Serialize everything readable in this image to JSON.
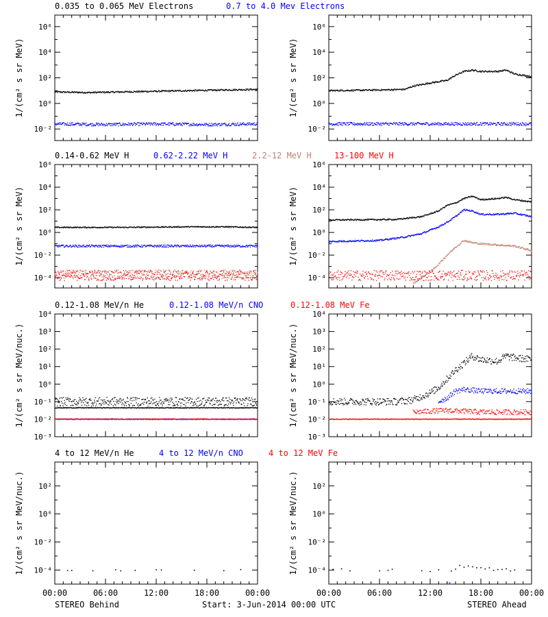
{
  "colors": {
    "black": "#000000",
    "blue": "#0000ff",
    "tan": "#c08070",
    "red": "#ff0000"
  },
  "footer": {
    "left": "STEREO Behind",
    "center": "Start:  3-Jun-2014 00:00 UTC",
    "right": "STEREO Ahead"
  },
  "x_axis": {
    "ticks": [
      "00:00",
      "06:00",
      "12:00",
      "18:00",
      "00:00"
    ],
    "range_hours": [
      0,
      24
    ]
  },
  "chart_data": [
    {
      "type": "scatter",
      "row": 0,
      "side": "behind",
      "ylabel": "1/(cm² s sr MeV)",
      "yscale": "log",
      "ylim_exp": [
        -2.9,
        6.9
      ],
      "ytick_exp": [
        -2,
        0,
        2,
        4,
        6
      ],
      "legend": [
        {
          "label": "0.035 to 0.065 MeV Electrons",
          "color": "black"
        },
        {
          "label": "0.7 to 4.0 Mev Electrons",
          "color": "blue"
        }
      ],
      "series": [
        {
          "color": "black",
          "points": [
            [
              0,
              0.9
            ],
            [
              4,
              0.85
            ],
            [
              8,
              0.9
            ],
            [
              12,
              0.95
            ],
            [
              16,
              1.0
            ],
            [
              20,
              1.05
            ],
            [
              24,
              1.1
            ]
          ],
          "jitter": 0.06
        },
        {
          "color": "blue",
          "points": [
            [
              0,
              -1.6
            ],
            [
              6,
              -1.65
            ],
            [
              12,
              -1.6
            ],
            [
              18,
              -1.65
            ],
            [
              24,
              -1.6
            ]
          ],
          "jitter": 0.12
        }
      ]
    },
    {
      "type": "scatter",
      "row": 0,
      "side": "ahead",
      "ylabel": "1/(cm² s sr MeV)",
      "yscale": "log",
      "ylim_exp": [
        -2.9,
        6.9
      ],
      "ytick_exp": [
        -2,
        0,
        2,
        4,
        6
      ],
      "legend": [],
      "series": [
        {
          "color": "black",
          "points": [
            [
              0,
              1.0
            ],
            [
              6,
              1.05
            ],
            [
              9,
              1.1
            ],
            [
              10,
              1.35
            ],
            [
              12,
              1.6
            ],
            [
              14,
              1.8
            ],
            [
              15,
              2.2
            ],
            [
              16,
              2.5
            ],
            [
              17,
              2.6
            ],
            [
              18,
              2.5
            ],
            [
              20,
              2.5
            ],
            [
              21,
              2.6
            ],
            [
              22,
              2.3
            ],
            [
              24,
              2.1
            ]
          ],
          "jitter": 0.06
        },
        {
          "color": "blue",
          "points": [
            [
              0,
              -1.6
            ],
            [
              6,
              -1.6
            ],
            [
              12,
              -1.6
            ],
            [
              18,
              -1.6
            ],
            [
              24,
              -1.6
            ]
          ],
          "jitter": 0.12
        }
      ]
    },
    {
      "type": "scatter",
      "row": 1,
      "side": "behind",
      "ylabel": "1/(cm² s sr MeV)",
      "yscale": "log",
      "ylim_exp": [
        -4.9,
        6.0
      ],
      "ytick_exp": [
        -4,
        -2,
        0,
        2,
        4,
        6
      ],
      "legend": [
        {
          "label": "0.14-0.62 MeV H",
          "color": "black"
        },
        {
          "label": "0.62-2.22 MeV H",
          "color": "blue"
        },
        {
          "label": "2.2-12 MeV H",
          "color": "tan"
        },
        {
          "label": "13-100 MeV H",
          "color": "red"
        }
      ],
      "series": [
        {
          "color": "black",
          "points": [
            [
              0,
              0.45
            ],
            [
              8,
              0.45
            ],
            [
              16,
              0.5
            ],
            [
              20,
              0.5
            ],
            [
              24,
              0.45
            ]
          ],
          "jitter": 0.05
        },
        {
          "color": "blue",
          "points": [
            [
              0,
              -1.2
            ],
            [
              12,
              -1.2
            ],
            [
              24,
              -1.2
            ]
          ],
          "jitter": 0.1
        },
        {
          "color": "tan",
          "points": [
            [
              0,
              -3.7
            ],
            [
              12,
              -3.7
            ],
            [
              24,
              -3.7
            ]
          ],
          "jitter": 0.4
        },
        {
          "color": "red",
          "points": [
            [
              0,
              -3.8
            ],
            [
              12,
              -3.8
            ],
            [
              24,
              -3.8
            ]
          ],
          "jitter": 0.45
        }
      ]
    },
    {
      "type": "scatter",
      "row": 1,
      "side": "ahead",
      "ylabel": "1/(cm² s sr MeV)",
      "yscale": "log",
      "ylim_exp": [
        -4.9,
        6.0
      ],
      "ytick_exp": [
        -4,
        -2,
        0,
        2,
        4,
        6
      ],
      "legend": [],
      "series": [
        {
          "color": "black",
          "points": [
            [
              0,
              1.1
            ],
            [
              8,
              1.15
            ],
            [
              11,
              1.4
            ],
            [
              13,
              1.9
            ],
            [
              14,
              2.4
            ],
            [
              15,
              2.6
            ],
            [
              16,
              3.0
            ],
            [
              17,
              3.2
            ],
            [
              18,
              2.9
            ],
            [
              20,
              3.0
            ],
            [
              21,
              3.1
            ],
            [
              22,
              2.9
            ],
            [
              24,
              2.7
            ]
          ],
          "jitter": 0.06
        },
        {
          "color": "blue",
          "points": [
            [
              0,
              -0.8
            ],
            [
              6,
              -0.7
            ],
            [
              9,
              -0.4
            ],
            [
              11,
              -0.1
            ],
            [
              13,
              0.5
            ],
            [
              14,
              0.9
            ],
            [
              15,
              1.4
            ],
            [
              16,
              2.0
            ],
            [
              17,
              1.9
            ],
            [
              18,
              1.6
            ],
            [
              20,
              1.6
            ],
            [
              22,
              1.7
            ],
            [
              24,
              1.4
            ]
          ],
          "jitter": 0.07
        },
        {
          "color": "tan",
          "points": [
            [
              10,
              -4.5
            ],
            [
              11,
              -4.0
            ],
            [
              12,
              -3.5
            ],
            [
              13,
              -2.8
            ],
            [
              14,
              -2.0
            ],
            [
              15,
              -1.3
            ],
            [
              16,
              -0.7
            ],
            [
              17,
              -0.9
            ],
            [
              18,
              -1.0
            ],
            [
              20,
              -1.1
            ],
            [
              22,
              -1.2
            ],
            [
              24,
              -1.6
            ]
          ],
          "jitter": 0.08
        },
        {
          "color": "red",
          "points": [
            [
              0,
              -3.8
            ],
            [
              12,
              -3.8
            ],
            [
              24,
              -3.8
            ]
          ],
          "jitter": 0.45
        }
      ]
    },
    {
      "type": "scatter",
      "row": 2,
      "side": "behind",
      "ylabel": "1/(cm² s sr MeV/nuc.)",
      "yscale": "log",
      "ylim_exp": [
        -3.0,
        4.0
      ],
      "ytick_exp": [
        -3,
        -2,
        -1,
        0,
        1,
        2,
        3,
        4
      ],
      "legend": [
        {
          "label": "0.12-1.08 MeV/n He",
          "color": "black"
        },
        {
          "label": "0.12-1.08 MeV/n CNO",
          "color": "blue"
        },
        {
          "label": "0.12-1.08 MeV Fe",
          "color": "red"
        }
      ],
      "series": [
        {
          "color": "black",
          "points": [
            [
              0,
              -1.0
            ],
            [
              12,
              -1.0
            ],
            [
              24,
              -1.0
            ]
          ],
          "jitter": 0.25
        },
        {
          "color": "black",
          "points": [
            [
              0,
              -1.35
            ],
            [
              12,
              -1.35
            ],
            [
              24,
              -1.35
            ]
          ],
          "jitter": 0.02
        },
        {
          "color": "blue",
          "points": [
            [
              0,
              -2.0
            ],
            [
              12,
              -2.0
            ],
            [
              24,
              -2.0
            ]
          ],
          "jitter": 0.02
        },
        {
          "color": "red",
          "points": [
            [
              0,
              -2.0
            ],
            [
              12,
              -2.0
            ],
            [
              24,
              -2.0
            ]
          ],
          "jitter": 0.02
        }
      ]
    },
    {
      "type": "scatter",
      "row": 2,
      "side": "ahead",
      "ylabel": "1/(cm² s sr MeV/nuc.)",
      "yscale": "log",
      "ylim_exp": [
        -3.0,
        4.0
      ],
      "ytick_exp": [
        -3,
        -2,
        -1,
        0,
        1,
        2,
        3,
        4
      ],
      "legend": [],
      "series": [
        {
          "color": "black",
          "points": [
            [
              0,
              -1.0
            ],
            [
              8,
              -1.0
            ],
            [
              10,
              -0.9
            ],
            [
              12,
              -0.5
            ],
            [
              13,
              -0.2
            ],
            [
              14,
              0.3
            ],
            [
              15,
              0.8
            ],
            [
              16,
              1.2
            ],
            [
              17,
              1.6
            ],
            [
              18,
              1.4
            ],
            [
              20,
              1.3
            ],
            [
              21,
              1.6
            ],
            [
              22,
              1.5
            ],
            [
              24,
              1.4
            ]
          ],
          "jitter": 0.2
        },
        {
          "color": "blue",
          "points": [
            [
              13,
              -1.0
            ],
            [
              14,
              -0.8
            ],
            [
              15,
              -0.4
            ],
            [
              16,
              -0.3
            ],
            [
              18,
              -0.4
            ],
            [
              20,
              -0.4
            ],
            [
              22,
              -0.4
            ],
            [
              24,
              -0.4
            ]
          ],
          "jitter": 0.15
        },
        {
          "color": "red",
          "points": [
            [
              0,
              -2.0
            ],
            [
              12,
              -2.0
            ],
            [
              24,
              -2.0
            ]
          ],
          "jitter": 0.02
        },
        {
          "color": "red",
          "points": [
            [
              10,
              -1.6
            ],
            [
              14,
              -1.5
            ],
            [
              18,
              -1.6
            ],
            [
              24,
              -1.6
            ]
          ],
          "jitter": 0.15
        }
      ]
    },
    {
      "type": "scatter",
      "row": 3,
      "side": "behind",
      "ylabel": "1/(cm² s sr MeV/nuc.)",
      "yscale": "log",
      "ylim_exp": [
        -5.0,
        3.7
      ],
      "ytick_exp": [
        -4,
        -2,
        0,
        2
      ],
      "legend": [
        {
          "label": "4 to 12 MeV/n He",
          "color": "black"
        },
        {
          "label": "4 to 12 MeV/n CNO",
          "color": "blue"
        },
        {
          "label": "4 to 12 MeV Fe",
          "color": "red"
        }
      ],
      "series": [
        {
          "color": "black",
          "sparse": true,
          "xs": [
            1.5,
            2,
            4.5,
            7.2,
            7.8,
            9.5,
            12,
            12.6,
            16.5,
            20,
            22
          ],
          "points": [
            [
              0,
              -4.0
            ],
            [
              24,
              -4.0
            ]
          ],
          "jitter": 0.05
        }
      ]
    },
    {
      "type": "scatter",
      "row": 3,
      "side": "ahead",
      "ylabel": "1/(cm² s sr MeV/nuc.)",
      "yscale": "log",
      "ylim_exp": [
        -5.0,
        3.7
      ],
      "ytick_exp": [
        -4,
        -2,
        0,
        2
      ],
      "legend": [],
      "series": [
        {
          "color": "black",
          "sparse": true,
          "xs": [
            0.5,
            1.5,
            2.5,
            6,
            7,
            7.5,
            11,
            12,
            13,
            14.5,
            15,
            15.5,
            16,
            16.5,
            17,
            17.5,
            18,
            18.5,
            19,
            19.5,
            20,
            20.5,
            21,
            21.5,
            22
          ],
          "points": [
            [
              0,
              -4.0
            ],
            [
              15,
              -4.0
            ],
            [
              15.5,
              -3.6
            ],
            [
              16,
              -3.7
            ],
            [
              17,
              -3.8
            ],
            [
              18,
              -3.9
            ],
            [
              24,
              -4.0
            ]
          ],
          "jitter": 0.1
        },
        {
          "color": "blue",
          "sparse": true,
          "xs": [
            14,
            14.3
          ],
          "points": [
            [
              0,
              -4.9
            ],
            [
              24,
              -4.9
            ]
          ],
          "jitter": 0.02
        }
      ]
    }
  ]
}
